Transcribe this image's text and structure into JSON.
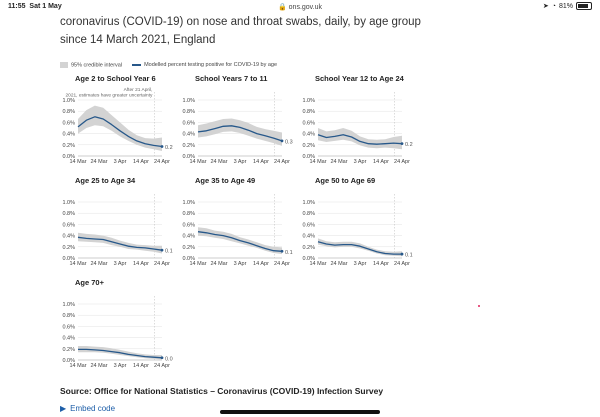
{
  "statusbar": {
    "time": "11:55",
    "date": "Sat 1 May",
    "url": "ons.gov.uk",
    "battery": "81%",
    "battery_level": 0.81
  },
  "header": {
    "title_line1": "coronavirus (COVID-19) on nose and throat swabs, daily, by age group",
    "title_line2": "since 14 March 2021, England"
  },
  "legend": {
    "band": "95% credible interval",
    "line": "Modelled percent testing positive for COVID-19 by age"
  },
  "colors": {
    "line": "#27588a",
    "band": "#d3d3d3",
    "text": "#222222"
  },
  "icons": [
    "lock-icon",
    "wifi-icon",
    "location-icon",
    "battery-icon",
    "triangle-right-icon"
  ],
  "chart_data": [
    {
      "type": "line",
      "title": "Age 2 to School Year 6",
      "annotation": "After 21 April 2021, estimates have greater uncertainty",
      "x": [
        "14 Mar",
        "18 Mar",
        "22 Mar",
        "26 Mar",
        "30 Mar",
        "3 Apr",
        "7 Apr",
        "11 Apr",
        "15 Apr",
        "19 Apr",
        "24 Apr"
      ],
      "values": [
        0.52,
        0.64,
        0.7,
        0.66,
        0.56,
        0.45,
        0.35,
        0.27,
        0.22,
        0.19,
        0.17
      ],
      "lower": [
        0.4,
        0.5,
        0.55,
        0.53,
        0.45,
        0.35,
        0.27,
        0.2,
        0.15,
        0.12,
        0.09
      ],
      "upper": [
        0.66,
        0.82,
        0.9,
        0.86,
        0.73,
        0.6,
        0.47,
        0.37,
        0.32,
        0.31,
        0.33
      ],
      "end_label": "0.2",
      "xticks": [
        "14 Mar",
        "24 Mar",
        "3 Apr",
        "14 Apr",
        "24 Apr"
      ],
      "yticks": [
        "0.0%",
        "0.2%",
        "0.4%",
        "0.6%",
        "0.8%",
        "1.0%"
      ],
      "ylim": [
        0,
        1.0
      ]
    },
    {
      "type": "line",
      "title": "School Years 7 to 11",
      "x": [
        "14 Mar",
        "18 Mar",
        "22 Mar",
        "26 Mar",
        "30 Mar",
        "3 Apr",
        "7 Apr",
        "11 Apr",
        "15 Apr",
        "19 Apr",
        "24 Apr"
      ],
      "values": [
        0.43,
        0.45,
        0.49,
        0.53,
        0.54,
        0.51,
        0.46,
        0.4,
        0.36,
        0.32,
        0.27
      ],
      "lower": [
        0.33,
        0.35,
        0.39,
        0.43,
        0.44,
        0.41,
        0.36,
        0.31,
        0.27,
        0.23,
        0.18
      ],
      "upper": [
        0.55,
        0.58,
        0.62,
        0.66,
        0.67,
        0.64,
        0.59,
        0.52,
        0.48,
        0.45,
        0.42
      ],
      "end_label": "0.3"
    },
    {
      "type": "line",
      "title": "School Year 12 to Age 24",
      "x": [
        "14 Mar",
        "18 Mar",
        "22 Mar",
        "26 Mar",
        "30 Mar",
        "3 Apr",
        "7 Apr",
        "11 Apr",
        "15 Apr",
        "19 Apr",
        "24 Apr"
      ],
      "values": [
        0.38,
        0.33,
        0.35,
        0.38,
        0.34,
        0.26,
        0.22,
        0.21,
        0.22,
        0.23,
        0.22
      ],
      "lower": [
        0.28,
        0.25,
        0.27,
        0.29,
        0.26,
        0.19,
        0.15,
        0.14,
        0.15,
        0.14,
        0.12
      ],
      "upper": [
        0.5,
        0.44,
        0.46,
        0.5,
        0.45,
        0.35,
        0.3,
        0.29,
        0.3,
        0.34,
        0.36
      ],
      "end_label": "0.2"
    },
    {
      "type": "line",
      "title": "Age 25 to Age 34",
      "x": [
        "14 Mar",
        "18 Mar",
        "22 Mar",
        "26 Mar",
        "30 Mar",
        "3 Apr",
        "7 Apr",
        "11 Apr",
        "15 Apr",
        "19 Apr",
        "24 Apr"
      ],
      "values": [
        0.37,
        0.35,
        0.34,
        0.33,
        0.29,
        0.25,
        0.21,
        0.19,
        0.18,
        0.16,
        0.14
      ],
      "lower": [
        0.3,
        0.29,
        0.28,
        0.27,
        0.23,
        0.2,
        0.16,
        0.15,
        0.13,
        0.11,
        0.08
      ],
      "upper": [
        0.45,
        0.43,
        0.42,
        0.4,
        0.36,
        0.31,
        0.27,
        0.24,
        0.23,
        0.22,
        0.22
      ],
      "end_label": "0.1"
    },
    {
      "type": "line",
      "title": "Age 35 to Age 49",
      "x": [
        "14 Mar",
        "18 Mar",
        "22 Mar",
        "26 Mar",
        "30 Mar",
        "3 Apr",
        "7 Apr",
        "11 Apr",
        "15 Apr",
        "19 Apr",
        "24 Apr"
      ],
      "values": [
        0.47,
        0.45,
        0.42,
        0.4,
        0.36,
        0.31,
        0.27,
        0.22,
        0.17,
        0.13,
        0.12
      ],
      "lower": [
        0.4,
        0.39,
        0.36,
        0.34,
        0.3,
        0.26,
        0.22,
        0.18,
        0.13,
        0.09,
        0.07
      ],
      "upper": [
        0.55,
        0.53,
        0.49,
        0.47,
        0.43,
        0.37,
        0.33,
        0.28,
        0.23,
        0.2,
        0.19
      ],
      "end_label": "0.1"
    },
    {
      "type": "line",
      "title": "Age 50 to Age 69",
      "x": [
        "14 Mar",
        "18 Mar",
        "22 Mar",
        "26 Mar",
        "30 Mar",
        "3 Apr",
        "7 Apr",
        "11 Apr",
        "15 Apr",
        "19 Apr",
        "24 Apr"
      ],
      "values": [
        0.29,
        0.25,
        0.23,
        0.24,
        0.24,
        0.21,
        0.16,
        0.11,
        0.08,
        0.07,
        0.07
      ],
      "lower": [
        0.24,
        0.21,
        0.19,
        0.2,
        0.2,
        0.17,
        0.13,
        0.08,
        0.05,
        0.04,
        0.03
      ],
      "upper": [
        0.35,
        0.3,
        0.28,
        0.29,
        0.29,
        0.26,
        0.2,
        0.15,
        0.12,
        0.11,
        0.12
      ],
      "end_label": "0.1"
    },
    {
      "type": "line",
      "title": "Age 70+",
      "x": [
        "14 Mar",
        "18 Mar",
        "22 Mar",
        "26 Mar",
        "30 Mar",
        "3 Apr",
        "7 Apr",
        "11 Apr",
        "15 Apr",
        "19 Apr",
        "24 Apr"
      ],
      "values": [
        0.19,
        0.19,
        0.18,
        0.17,
        0.15,
        0.13,
        0.1,
        0.08,
        0.06,
        0.05,
        0.04
      ],
      "lower": [
        0.14,
        0.14,
        0.14,
        0.13,
        0.11,
        0.09,
        0.07,
        0.05,
        0.03,
        0.02,
        0.01
      ],
      "upper": [
        0.25,
        0.25,
        0.24,
        0.23,
        0.21,
        0.18,
        0.15,
        0.12,
        0.1,
        0.09,
        0.09
      ],
      "end_label": "0.0"
    }
  ],
  "axes": {
    "xticks": [
      "14 Mar",
      "24 Mar",
      "3 Apr",
      "14 Apr",
      "24 Apr"
    ],
    "yticks": [
      "0.0%",
      "0.2%",
      "0.4%",
      "0.6%",
      "0.8%",
      "1.0%"
    ],
    "ylim": [
      0,
      1.0
    ]
  },
  "footer": {
    "source": "Source: Office for National Statistics – Coronavirus (COVID-19) Infection Survey",
    "embed": "Embed code"
  }
}
